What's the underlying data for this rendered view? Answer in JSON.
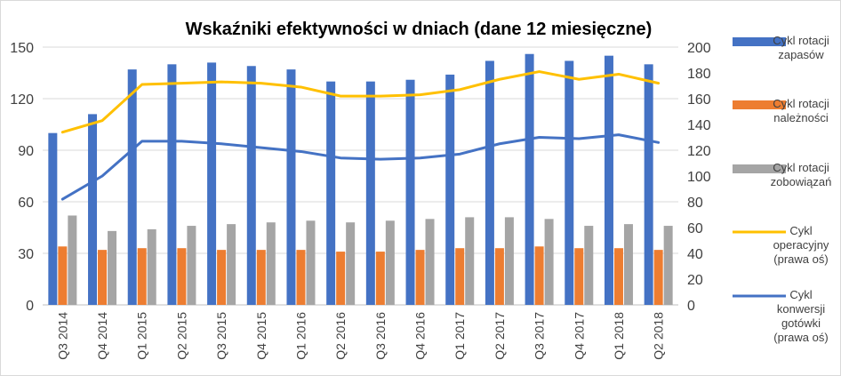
{
  "chart_data": {
    "type": "bar+line",
    "title": "Wskaźniki efektywności w dniach (dane 12 miesięczne)",
    "categories": [
      "Q3 2014",
      "Q4 2014",
      "Q1 2015",
      "Q2 2015",
      "Q3 2015",
      "Q4 2015",
      "Q1 2016",
      "Q2 2016",
      "Q3 2016",
      "Q4 2016",
      "Q1 2017",
      "Q2 2017",
      "Q3 2017",
      "Q4 2017",
      "Q1 2018",
      "Q2 2018"
    ],
    "y_left": {
      "range": [
        0,
        150
      ],
      "ticks": [
        "0",
        "30",
        "60",
        "90",
        "120",
        "150"
      ]
    },
    "y_right": {
      "range": [
        0,
        200
      ],
      "ticks": [
        "0",
        "20",
        "40",
        "60",
        "80",
        "100",
        "120",
        "140",
        "160",
        "180",
        "200"
      ]
    },
    "grid": true,
    "legend_position": "right",
    "series": [
      {
        "name": "Cykl rotacji zapasów",
        "kind": "bar",
        "axis": "left",
        "color": "#4472C4",
        "values": [
          100,
          111,
          137,
          140,
          141,
          139,
          137,
          130,
          130,
          131,
          134,
          142,
          146,
          142,
          145,
          140
        ]
      },
      {
        "name": "Cykl rotacji należności",
        "kind": "bar",
        "axis": "left",
        "color": "#ED7D31",
        "values": [
          34,
          32,
          33,
          33,
          32,
          32,
          32,
          31,
          31,
          32,
          33,
          33,
          34,
          33,
          33,
          32
        ]
      },
      {
        "name": "Cykl rotacji zobowiązań",
        "kind": "bar",
        "axis": "left",
        "color": "#A5A5A5",
        "values": [
          52,
          43,
          44,
          46,
          47,
          48,
          49,
          48,
          49,
          50,
          51,
          51,
          50,
          46,
          47,
          46
        ]
      },
      {
        "name": "Cykl operacyjny (prawa oś)",
        "kind": "line",
        "axis": "right",
        "color": "#FFC000",
        "values": [
          134,
          143,
          171,
          172,
          173,
          172,
          169,
          162,
          162,
          163,
          167,
          175,
          181,
          175,
          179,
          172
        ]
      },
      {
        "name": "Cykl konwersji gotówki (prawa oś)",
        "kind": "line",
        "axis": "right",
        "color": "#4472C4",
        "values": [
          82,
          100,
          127,
          127,
          125,
          122,
          119,
          114,
          113,
          114,
          117,
          125,
          130,
          129,
          132,
          126
        ]
      }
    ]
  },
  "legend": [
    {
      "lines": [
        "Cykl rotacji",
        "zapasów"
      ]
    },
    {
      "lines": [
        "Cykl rotacji",
        "należności"
      ]
    },
    {
      "lines": [
        "Cykl rotacji",
        "zobowiązań"
      ]
    },
    {
      "lines": [
        "Cykl",
        "operacyjny",
        "(prawa oś)"
      ]
    },
    {
      "lines": [
        "Cykl",
        "konwersji",
        "gotówki",
        "(prawa oś)"
      ]
    }
  ]
}
